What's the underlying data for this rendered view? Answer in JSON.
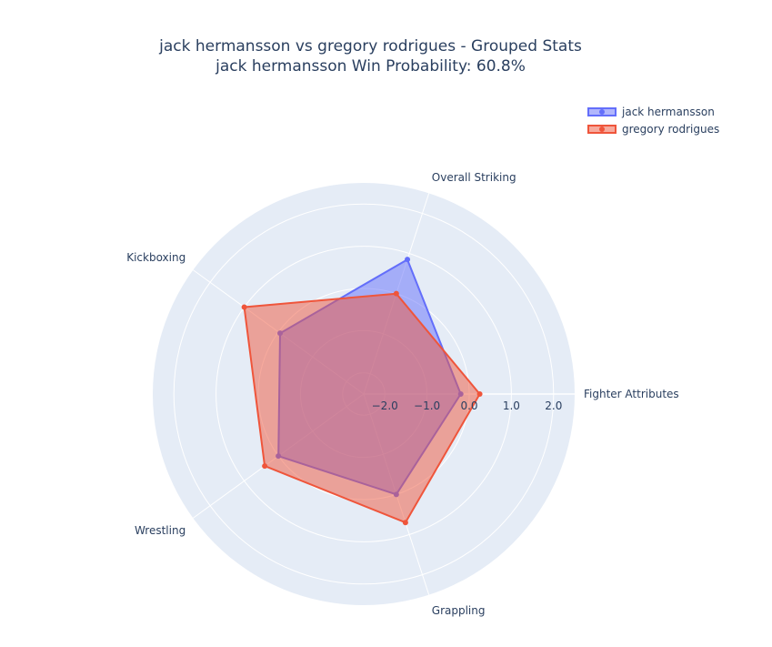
{
  "chart_data": {
    "type": "radar",
    "title": "jack hermansson vs gregory rodrigues - Grouped Stats",
    "subtitle": "jack hermansson Win Probability: 60.8%",
    "categories": [
      "Fighter Attributes",
      "Overall Striking",
      "Kickboxing",
      "Wrestling",
      "Grappling"
    ],
    "radial_range": [
      -2.5,
      2.5
    ],
    "radial_ticks": [
      "−2.0",
      "−1.0",
      "0.0",
      "1.0",
      "2.0"
    ],
    "radial_tick_values": [
      -2,
      -1,
      0,
      1,
      2
    ],
    "grid": true,
    "legend_position": "top-right",
    "series": [
      {
        "name": "jack hermansson",
        "values": [
          -0.2,
          0.85,
          -0.05,
          0.0,
          0.0
        ],
        "color": "#636efa"
      },
      {
        "name": "gregory rodrigues",
        "values": [
          0.25,
          0.0,
          1.0,
          0.4,
          0.7
        ],
        "color": "#ef553b"
      }
    ]
  }
}
